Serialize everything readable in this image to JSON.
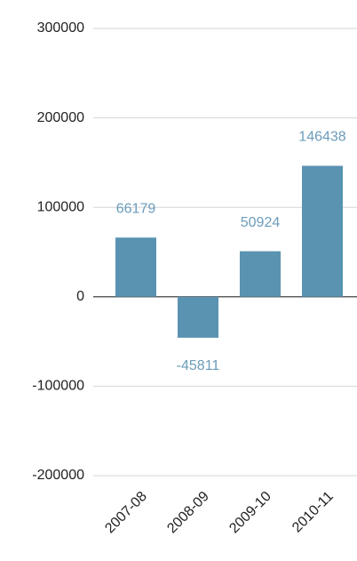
{
  "chart_data": {
    "type": "bar",
    "categories": [
      "2007-08",
      "2008-09",
      "2009-10",
      "2010-11"
    ],
    "values": [
      66179,
      -45811,
      50924,
      146438
    ],
    "color": "#5a93b2",
    "ylim": [
      -200000,
      300000
    ],
    "yticks": [
      -200000,
      -100000,
      0,
      100000,
      200000,
      300000
    ],
    "grid": true
  }
}
